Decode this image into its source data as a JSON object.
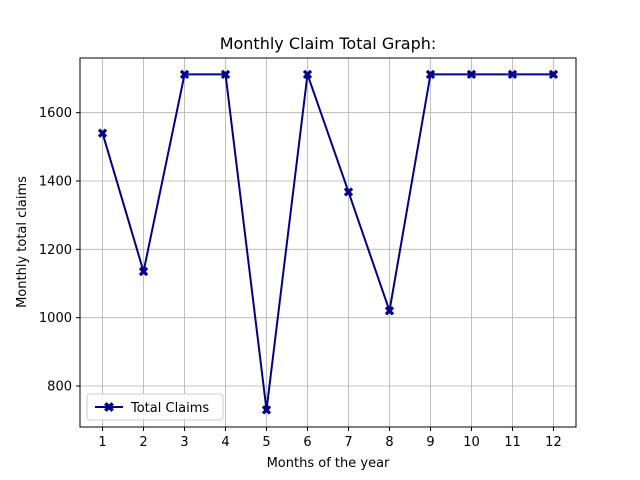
{
  "chart_data": {
    "type": "line",
    "title": "Monthly Claim Total Graph:",
    "xlabel": "Months of the year",
    "ylabel": "Monthly total claims",
    "x": [
      1,
      2,
      3,
      4,
      5,
      6,
      7,
      8,
      9,
      10,
      11,
      12
    ],
    "xticks": [
      "1",
      "2",
      "3",
      "4",
      "5",
      "6",
      "7",
      "8",
      "9",
      "10",
      "11",
      "12"
    ],
    "yticks": [
      "800",
      "1000",
      "1200",
      "1400",
      "1600"
    ],
    "xlim": [
      0.45,
      12.55
    ],
    "ylim": [
      680,
      1760
    ],
    "grid": true,
    "legend_position": "lower-left",
    "series": [
      {
        "name": "Total Claims",
        "color": "#00008b",
        "marker": "X",
        "values": [
          1540,
          1135,
          1712,
          1712,
          730,
          1712,
          1368,
          1020,
          1712,
          1712,
          1712,
          1712
        ]
      }
    ]
  }
}
